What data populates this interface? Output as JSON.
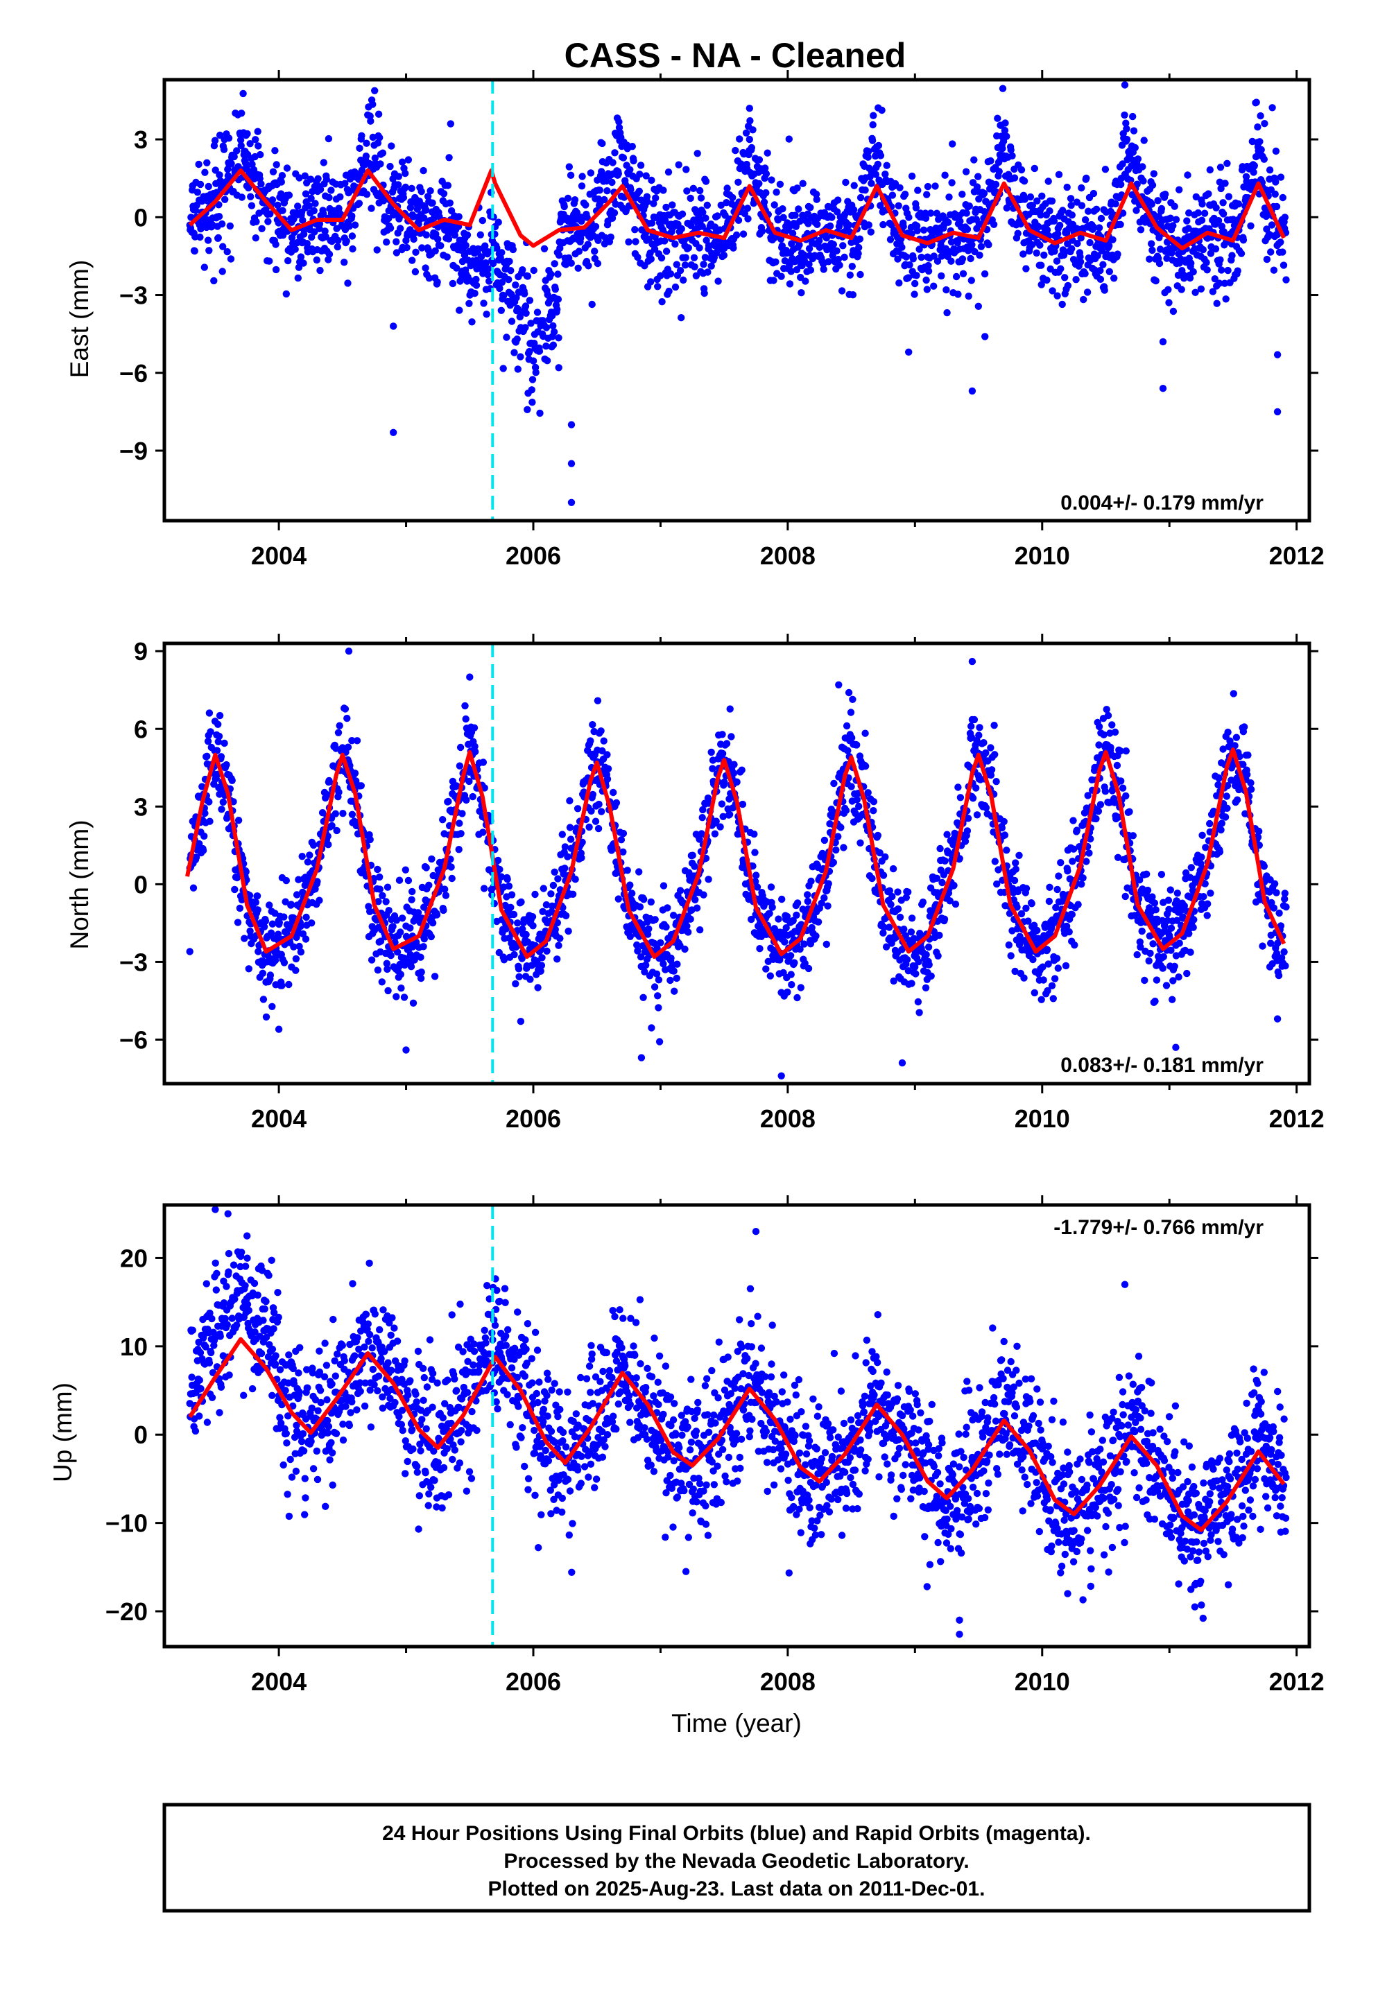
{
  "chart_data": {
    "title": "CASS  - NA - Cleaned",
    "type": "scatter",
    "xlabel": "Time (year)",
    "xlim": [
      2003.1,
      2012.1
    ],
    "x_ticks": [
      2004,
      2006,
      2008,
      2010,
      2012
    ],
    "x_tick_labels": [
      "2004",
      "2006",
      "2008",
      "2010",
      "2012"
    ],
    "offset_line_x": 2005.68,
    "colors": {
      "data": "#0000ff",
      "model": "#ff0000",
      "offset": "#00e5ee"
    },
    "panels": [
      {
        "name": "East",
        "ylabel": "East (mm)",
        "ylim": [
          -11.7,
          5.3
        ],
        "y_ticks": [
          3,
          0,
          -3,
          -6,
          -9
        ],
        "y_tick_labels": [
          "3",
          "0",
          "−3",
          "−6",
          "−9"
        ],
        "rate": "0.004+/- 0.179 mm/yr",
        "rate_position": "bottom-right",
        "model_curve": {
          "x": [
            2003.3,
            2003.5,
            2003.7,
            2003.9,
            2004.1,
            2004.3,
            2004.5,
            2004.7,
            2004.9,
            2005.1,
            2005.3,
            2005.5,
            2005.67,
            2005.7,
            2005.8,
            2005.9,
            2006.0,
            2006.2,
            2006.4,
            2006.6,
            2006.7,
            2006.9,
            2007.1,
            2007.3,
            2007.5,
            2007.7,
            2007.9,
            2008.1,
            2008.3,
            2008.5,
            2008.7,
            2008.9,
            2009.1,
            2009.3,
            2009.5,
            2009.7,
            2009.9,
            2010.1,
            2010.3,
            2010.5,
            2010.7,
            2010.9,
            2011.1,
            2011.3,
            2011.5,
            2011.7,
            2011.9
          ],
          "y": [
            -0.3,
            0.6,
            1.8,
            0.6,
            -0.5,
            -0.1,
            -0.1,
            1.8,
            0.5,
            -0.5,
            -0.1,
            -0.3,
            1.8,
            1.3,
            0.3,
            -0.7,
            -1.1,
            -0.5,
            -0.4,
            0.6,
            1.2,
            -0.5,
            -0.8,
            -0.6,
            -0.8,
            1.2,
            -0.6,
            -0.9,
            -0.5,
            -0.8,
            1.2,
            -0.7,
            -1.0,
            -0.6,
            -0.8,
            1.3,
            -0.5,
            -1.0,
            -0.6,
            -0.9,
            1.3,
            -0.4,
            -1.2,
            -0.6,
            -0.9,
            1.3,
            -0.8
          ]
        },
        "outliers": [
          [
            2004.9,
            -8.3
          ],
          [
            2004.9,
            -4.2
          ],
          [
            2005.35,
            3.6
          ],
          [
            2006.3,
            -8.0
          ],
          [
            2006.3,
            -9.5
          ],
          [
            2006.3,
            -11.0
          ],
          [
            2006.2,
            -5.8
          ],
          [
            2006.15,
            -4.6
          ],
          [
            2008.95,
            -5.2
          ],
          [
            2009.45,
            -6.7
          ],
          [
            2009.55,
            -4.6
          ],
          [
            2010.95,
            -6.6
          ],
          [
            2010.95,
            -4.8
          ],
          [
            2011.85,
            -7.5
          ],
          [
            2011.85,
            -5.3
          ],
          [
            2010.65,
            5.1
          ],
          [
            2007.7,
            4.2
          ]
        ]
      },
      {
        "name": "North",
        "ylabel": "North (mm)",
        "ylim": [
          -7.7,
          9.3
        ],
        "y_ticks": [
          9,
          6,
          3,
          0,
          -3,
          -6
        ],
        "y_tick_labels": [
          "9",
          "6",
          "3",
          "0",
          "−3",
          "−6"
        ],
        "rate": "0.083+/- 0.181 mm/yr",
        "rate_position": "bottom-right",
        "model_curve": {
          "x": [
            2003.28,
            2003.4,
            2003.5,
            2003.6,
            2003.75,
            2003.9,
            2004.1,
            2004.3,
            2004.45,
            2004.5,
            2004.6,
            2004.75,
            2004.9,
            2005.1,
            2005.3,
            2005.45,
            2005.5,
            2005.6,
            2005.75,
            2005.95,
            2006.1,
            2006.3,
            2006.45,
            2006.5,
            2006.6,
            2006.75,
            2006.95,
            2007.1,
            2007.3,
            2007.45,
            2007.5,
            2007.6,
            2007.75,
            2007.95,
            2008.1,
            2008.3,
            2008.45,
            2008.5,
            2008.6,
            2008.75,
            2008.95,
            2009.1,
            2009.3,
            2009.45,
            2009.5,
            2009.6,
            2009.75,
            2009.95,
            2010.1,
            2010.3,
            2010.45,
            2010.5,
            2010.6,
            2010.75,
            2010.95,
            2011.1,
            2011.3,
            2011.45,
            2011.5,
            2011.6,
            2011.75,
            2011.9
          ],
          "y": [
            0.3,
            3.2,
            5.0,
            3.5,
            -0.8,
            -2.6,
            -2.0,
            0.6,
            4.2,
            5.0,
            3.5,
            -0.8,
            -2.5,
            -2.0,
            0.6,
            4.2,
            5.1,
            3.4,
            -1.0,
            -2.8,
            -2.2,
            0.5,
            4.0,
            4.7,
            3.0,
            -1.0,
            -2.8,
            -2.2,
            0.4,
            4.1,
            4.8,
            3.2,
            -0.9,
            -2.7,
            -2.1,
            0.5,
            4.2,
            4.9,
            3.3,
            -0.8,
            -2.6,
            -2.0,
            0.6,
            4.3,
            5.0,
            3.4,
            -0.8,
            -2.6,
            -2.0,
            0.7,
            4.4,
            5.1,
            3.5,
            -0.8,
            -2.5,
            -1.9,
            0.8,
            4.5,
            5.2,
            3.6,
            -0.7,
            -2.3
          ]
        },
        "outliers": [
          [
            2004.55,
            9.0
          ],
          [
            2005.5,
            8.0
          ],
          [
            2009.45,
            8.6
          ],
          [
            2008.4,
            7.7
          ],
          [
            2007.95,
            -7.4
          ],
          [
            2008.9,
            -6.9
          ],
          [
            2006.85,
            -6.7
          ],
          [
            2004.0,
            -5.6
          ],
          [
            2011.05,
            -6.3
          ],
          [
            2003.3,
            -2.6
          ],
          [
            2005.0,
            -6.4
          ],
          [
            2011.85,
            -5.2
          ]
        ]
      },
      {
        "name": "Up",
        "ylabel": "Up (mm)",
        "ylim": [
          -24,
          26
        ],
        "y_ticks": [
          20,
          10,
          0,
          -10,
          -20
        ],
        "y_tick_labels": [
          "20",
          "10",
          "0",
          "−10",
          "−20"
        ],
        "rate": "-1.779+/- 0.766 mm/yr",
        "rate_position": "top-right",
        "model_curve": {
          "x": [
            2003.3,
            2003.5,
            2003.7,
            2003.9,
            2004.1,
            2004.25,
            2004.45,
            2004.7,
            2004.9,
            2005.1,
            2005.25,
            2005.45,
            2005.7,
            2005.9,
            2006.1,
            2006.25,
            2006.45,
            2006.7,
            2006.9,
            2007.1,
            2007.25,
            2007.45,
            2007.7,
            2007.9,
            2008.1,
            2008.25,
            2008.45,
            2008.7,
            2008.9,
            2009.1,
            2009.25,
            2009.45,
            2009.7,
            2009.9,
            2010.1,
            2010.25,
            2010.45,
            2010.7,
            2010.9,
            2011.1,
            2011.25,
            2011.45,
            2011.7,
            2011.9
          ],
          "y": [
            2.0,
            6.5,
            10.8,
            7.5,
            2.5,
            0.2,
            4.0,
            9.2,
            5.8,
            0.6,
            -1.5,
            2.2,
            8.8,
            5.0,
            -0.8,
            -3.2,
            0.8,
            7.0,
            3.4,
            -2.0,
            -3.5,
            -0.5,
            5.2,
            1.7,
            -3.7,
            -5.3,
            -2.2,
            3.4,
            0.0,
            -5.3,
            -7.2,
            -4.0,
            1.6,
            -1.8,
            -7.4,
            -9.0,
            -5.8,
            -0.2,
            -3.5,
            -9.2,
            -10.8,
            -7.6,
            -1.9,
            -5.6
          ]
        },
        "outliers": [
          [
            2003.5,
            25.5
          ],
          [
            2003.6,
            25.0
          ],
          [
            2003.75,
            22.5
          ],
          [
            2007.75,
            23.0
          ],
          [
            2009.35,
            -22.6
          ],
          [
            2009.35,
            -21.0
          ],
          [
            2010.65,
            17.0
          ],
          [
            2011.2,
            -19.5
          ],
          [
            2007.2,
            -15.5
          ],
          [
            2010.2,
            -18.0
          ]
        ]
      }
    ]
  },
  "footer": {
    "line1": "24 Hour Positions Using Final Orbits (blue) and Rapid Orbits (magenta).",
    "line2": "Processed by the Nevada Geodetic Laboratory.",
    "line3": "Plotted on 2025-Aug-23. Last data on 2011-Dec-01."
  }
}
